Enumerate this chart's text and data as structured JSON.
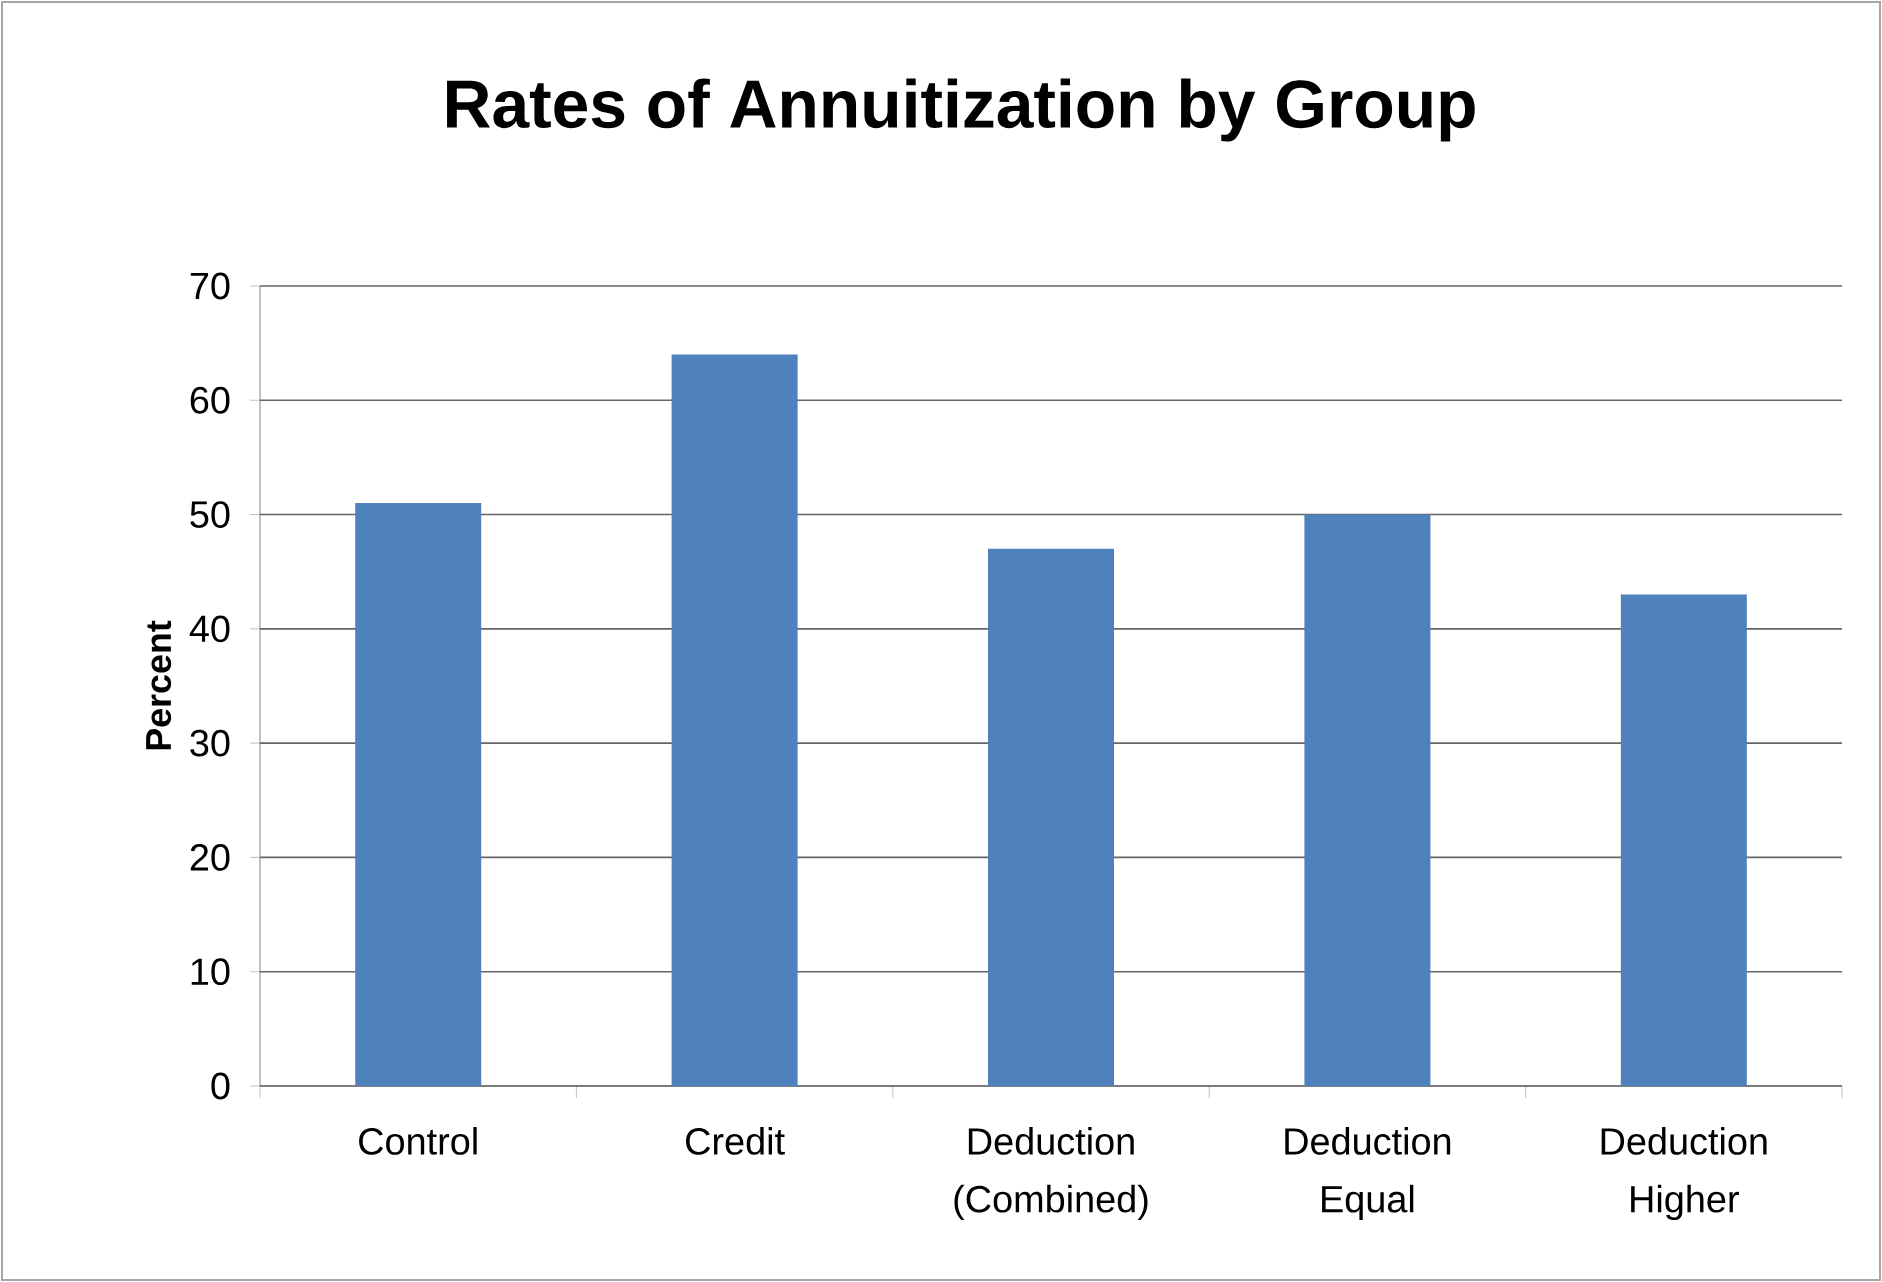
{
  "chart_data": {
    "type": "bar",
    "title": "Rates of Annuitization by Group",
    "ylabel": "Percent",
    "categories": [
      "Control",
      "Credit",
      "Deduction (Combined)",
      "Deduction Equal",
      "Deduction Higher"
    ],
    "values": [
      51,
      64,
      47,
      50,
      43
    ],
    "color": "#4f81bd",
    "ylim": [
      0,
      70
    ],
    "yticks": [
      0,
      10,
      20,
      30,
      40,
      50,
      60,
      70
    ],
    "grid": "y"
  }
}
